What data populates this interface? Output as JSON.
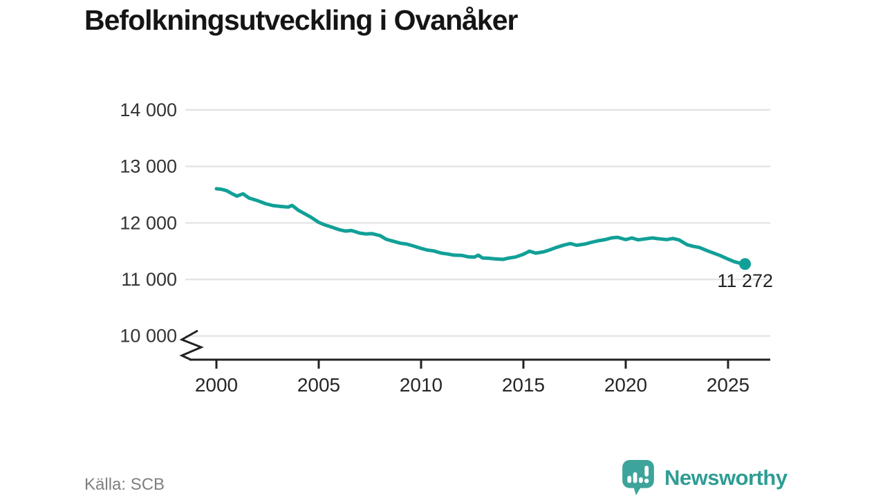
{
  "title": "Befolkningsutveckling i Ovanåker",
  "source": "Källa: SCB",
  "branding": {
    "name": "Newsworthy",
    "logo_icon": "speech-bubble-bar-chart-exclamation",
    "accent_color": "#2e9d94"
  },
  "chart_data": {
    "type": "line",
    "title": "Befolkningsutveckling i Ovanåker",
    "xlabel": "",
    "ylabel": "",
    "grid": "horizontal",
    "legend": "none",
    "axis_break_at_bottom": true,
    "ylim": [
      10000,
      14000
    ],
    "xlim": [
      2000,
      2027
    ],
    "line_color": "#11a097",
    "grid_color": "#e4e4e4",
    "axis_color": "#222222",
    "tick_label_color": "#333333",
    "y_ticks": [
      {
        "value": 14000,
        "label": "14 000"
      },
      {
        "value": 13000,
        "label": "13 000"
      },
      {
        "value": 12000,
        "label": "12 000"
      },
      {
        "value": 11000,
        "label": "11 000"
      },
      {
        "value": 10000,
        "label": "10 000"
      }
    ],
    "x_ticks": [
      {
        "value": 2000,
        "label": "2000"
      },
      {
        "value": 2005,
        "label": "2005"
      },
      {
        "value": 2010,
        "label": "2010"
      },
      {
        "value": 2015,
        "label": "2015"
      },
      {
        "value": 2020,
        "label": "2020"
      },
      {
        "value": 2025,
        "label": "2025"
      }
    ],
    "annotation": {
      "text": "11 272",
      "value": 11272
    },
    "series": [
      {
        "name": "Befolkning",
        "points": [
          [
            2000.0,
            12605
          ],
          [
            2000.25,
            12595
          ],
          [
            2000.5,
            12570
          ],
          [
            2000.75,
            12520
          ],
          [
            2001.0,
            12475
          ],
          [
            2001.3,
            12515
          ],
          [
            2001.6,
            12440
          ],
          [
            2002.0,
            12395
          ],
          [
            2002.4,
            12340
          ],
          [
            2002.8,
            12305
          ],
          [
            2003.2,
            12290
          ],
          [
            2003.5,
            12280
          ],
          [
            2003.7,
            12310
          ],
          [
            2004.0,
            12225
          ],
          [
            2004.3,
            12165
          ],
          [
            2004.6,
            12105
          ],
          [
            2005.0,
            12010
          ],
          [
            2005.3,
            11965
          ],
          [
            2005.6,
            11930
          ],
          [
            2006.0,
            11880
          ],
          [
            2006.3,
            11855
          ],
          [
            2006.6,
            11865
          ],
          [
            2007.0,
            11820
          ],
          [
            2007.3,
            11805
          ],
          [
            2007.6,
            11810
          ],
          [
            2008.0,
            11775
          ],
          [
            2008.3,
            11710
          ],
          [
            2008.6,
            11680
          ],
          [
            2009.0,
            11640
          ],
          [
            2009.3,
            11625
          ],
          [
            2009.6,
            11595
          ],
          [
            2010.0,
            11550
          ],
          [
            2010.3,
            11520
          ],
          [
            2010.6,
            11505
          ],
          [
            2011.0,
            11465
          ],
          [
            2011.3,
            11450
          ],
          [
            2011.6,
            11430
          ],
          [
            2012.0,
            11425
          ],
          [
            2012.3,
            11400
          ],
          [
            2012.6,
            11395
          ],
          [
            2012.8,
            11430
          ],
          [
            2013.0,
            11380
          ],
          [
            2013.3,
            11375
          ],
          [
            2013.6,
            11365
          ],
          [
            2014.0,
            11355
          ],
          [
            2014.3,
            11380
          ],
          [
            2014.6,
            11395
          ],
          [
            2015.0,
            11445
          ],
          [
            2015.3,
            11500
          ],
          [
            2015.6,
            11465
          ],
          [
            2016.0,
            11490
          ],
          [
            2016.3,
            11525
          ],
          [
            2016.6,
            11565
          ],
          [
            2017.0,
            11610
          ],
          [
            2017.3,
            11635
          ],
          [
            2017.6,
            11605
          ],
          [
            2018.0,
            11625
          ],
          [
            2018.3,
            11655
          ],
          [
            2018.6,
            11680
          ],
          [
            2019.0,
            11705
          ],
          [
            2019.3,
            11735
          ],
          [
            2019.6,
            11745
          ],
          [
            2020.0,
            11705
          ],
          [
            2020.3,
            11735
          ],
          [
            2020.6,
            11700
          ],
          [
            2021.0,
            11720
          ],
          [
            2021.3,
            11735
          ],
          [
            2021.6,
            11720
          ],
          [
            2022.0,
            11705
          ],
          [
            2022.3,
            11725
          ],
          [
            2022.6,
            11700
          ],
          [
            2023.0,
            11615
          ],
          [
            2023.3,
            11585
          ],
          [
            2023.6,
            11565
          ],
          [
            2024.0,
            11505
          ],
          [
            2024.3,
            11465
          ],
          [
            2024.6,
            11425
          ],
          [
            2025.0,
            11360
          ],
          [
            2025.3,
            11315
          ],
          [
            2025.6,
            11285
          ],
          [
            2025.83,
            11272
          ]
        ]
      }
    ]
  }
}
